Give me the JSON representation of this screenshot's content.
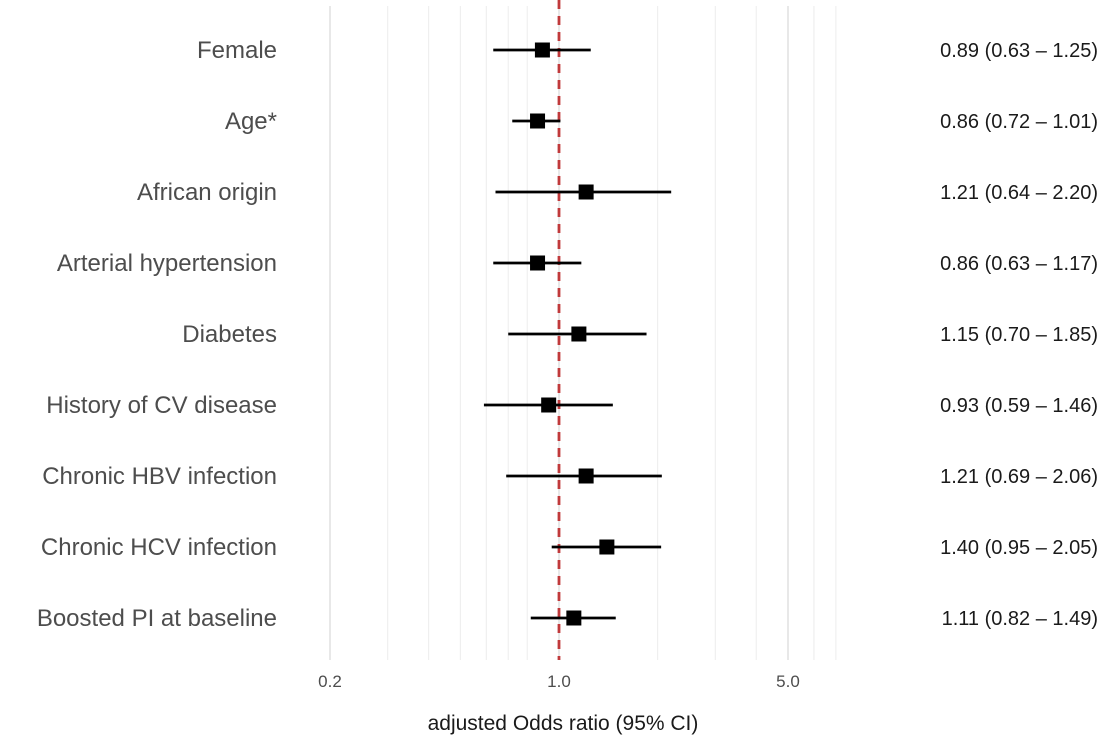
{
  "chart_data": {
    "type": "forest",
    "xlabel": "adjusted Odds ratio (95% CI)",
    "x_scale": "log",
    "xlim": [
      0.15,
      8.0
    ],
    "xticks": [
      0.2,
      1.0,
      5.0
    ],
    "xtick_labels": [
      "0.2",
      "1.0",
      "5.0"
    ],
    "minor_gridlines": [
      0.3,
      0.4,
      0.5,
      0.6,
      0.7,
      0.8,
      2,
      3,
      4,
      6,
      7
    ],
    "reference_line": 1.0,
    "reference_color": "#c0393b",
    "grid": true,
    "rows": [
      {
        "label": "Female",
        "or": 0.89,
        "lo": 0.63,
        "hi": 1.25,
        "text": "0.89 (0.63 – 1.25)"
      },
      {
        "label": "Age*",
        "or": 0.86,
        "lo": 0.72,
        "hi": 1.01,
        "text": "0.86 (0.72 – 1.01)"
      },
      {
        "label": "African origin",
        "or": 1.21,
        "lo": 0.64,
        "hi": 2.2,
        "text": "1.21 (0.64 – 2.20)"
      },
      {
        "label": "Arterial hypertension",
        "or": 0.86,
        "lo": 0.63,
        "hi": 1.17,
        "text": "0.86 (0.63 – 1.17)"
      },
      {
        "label": "Diabetes",
        "or": 1.15,
        "lo": 0.7,
        "hi": 1.85,
        "text": "1.15 (0.70 – 1.85)"
      },
      {
        "label": "History of CV disease",
        "or": 0.93,
        "lo": 0.59,
        "hi": 1.46,
        "text": "0.93 (0.59 – 1.46)"
      },
      {
        "label": "Chronic HBV infection",
        "or": 1.21,
        "lo": 0.69,
        "hi": 2.06,
        "text": "1.21 (0.69 – 2.06)"
      },
      {
        "label": "Chronic HCV infection",
        "or": 1.4,
        "lo": 0.95,
        "hi": 2.05,
        "text": "1.40 (0.95 – 2.05)"
      },
      {
        "label": "Boosted PI at baseline",
        "or": 1.11,
        "lo": 0.82,
        "hi": 1.49,
        "text": "1.11 (0.82 – 1.49)"
      }
    ]
  }
}
